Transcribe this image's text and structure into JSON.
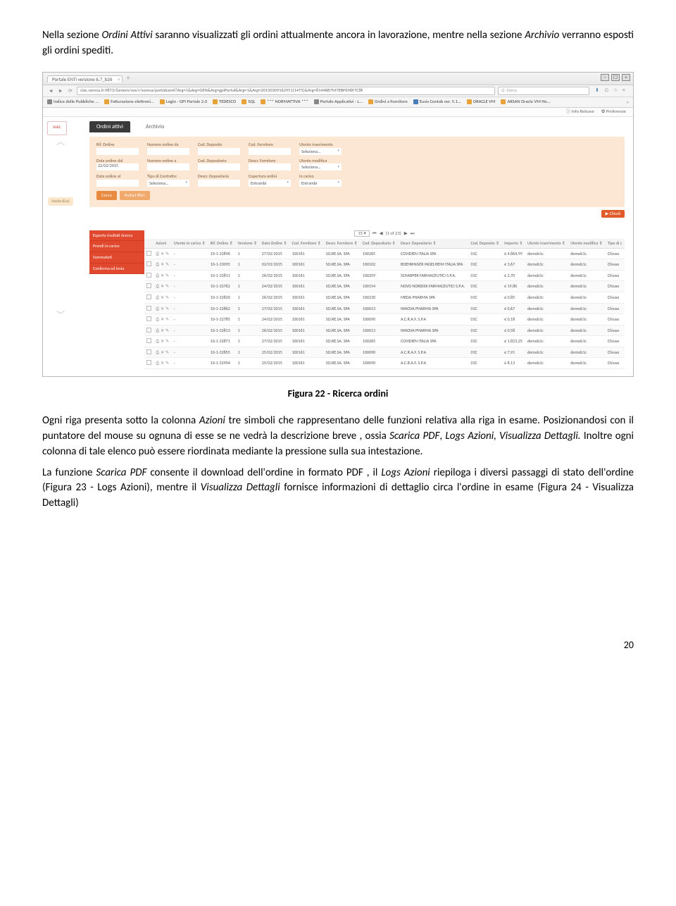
{
  "para1_a": "Nella sezione ",
  "para1_b": "Ordini Attivi",
  "para1_c": " saranno visualizzati gli ordini attualmente ancora in lavorazione, mentre nella sezione ",
  "para1_d": "Archivio",
  "para1_e": " verranno esposti gli ordini spediti.",
  "caption": "Figura 22 - Ricerca ordini",
  "para2_a": "Ogni riga presenta sotto la colonna ",
  "para2_b": "Azioni",
  "para2_c": "  tre simboli che rappresentano delle funzioni relativa alla riga in esame.  Posizionandosi con il puntatore del mouse su ognuna di esse se ne vedrà la descrizione breve , ossia ",
  "para2_d": "Scarica PDF",
  "para2_e": ", ",
  "para2_f": "Logs Azioni, Visualizza Dettagli.",
  "para2_g": " Inoltre ogni colonna di tale elenco può essere riordinata mediante la pressione sulla sua intestazione.",
  "para3_a": "La funzione ",
  "para3_b": "Scarica PDF",
  "para3_c": "  consente il download dell'ordine in formato PDF , il ",
  "para3_d": "Logs Azioni",
  "para3_e": "  riepiloga i diversi passaggi di stato dell'ordine (Figura 23 - Logs Azioni), mentre il ",
  "para3_f": "Visualizza Dettagli",
  "para3_g": " fornisce  informazioni di dettaglio circa l'ordine in esame (Figura 24 - Visualizza Dettagli)",
  "page_num": "20",
  "browser": {
    "tab_title": "Portale ENTI versione 6.7_b26",
    "url": "siac.soresa.it:9873/Genero/wa/r/soresa/portaleenti?Arg=1&Arg=GEN&Arg=gpiPortal&Arg=1&Arg=20150309162951[1475]&Arg=81446B7M7EBP696F7C8F",
    "search_placeholder": "Cerca",
    "bookmarks": [
      "Indice delle Pubbliche ...",
      "Fatturazione elettroni...",
      "Login - GPI Portale 2.0",
      "TEDESCO",
      "SQL",
      "*** NORMATTIVA ***",
      "Portale Applicativi - L...",
      "Ordini a Fornitore",
      "Eusis Contab ver. 5.1...",
      "ORACLE VM",
      "ARSAN Oracle VM Ho..."
    ],
    "info_release": "Info Release",
    "preferenze": "Preferenze"
  },
  "app": {
    "logo": "SIAC",
    "uscita": "Uscita (Esc)",
    "tab_active": "Ordini attivi",
    "tab_other": "Archivio",
    "filters": {
      "rif_ordine": "Rif. Ordine",
      "data_dal": "Data ordine dal",
      "data_dal_val": "22/02/2015",
      "data_al": "Data ordine al",
      "num_da": "Numero ordine da",
      "num_a": "Numero ordine a",
      "tipo_contratto": "Tipo di Contratto:",
      "seleziona": "Seleziona...",
      "cod_deposito": "Cod. Deposito",
      "cod_depositario": "Cod. Depositario",
      "descr_depositario": "Descr. Depositario",
      "cod_fornitore": "Cod. Fornitore",
      "descr_fornitore": "Descr. Fornitore",
      "copertura": "Copertura ordini",
      "entrambi": "Entrambi",
      "utente_ins": "Utente inserimento",
      "utente_mod": "Utente modifica",
      "in_carico": "In carico"
    },
    "btn_cerca": "Cerca",
    "btn_pulisci": "Pulisci filtri",
    "btn_chiudi": "▶ Chiudi",
    "redmenu": [
      "Esporta risultati ricerca",
      "Prendi in carico",
      "Sommatoti",
      "Conferma ed invia"
    ],
    "pager_size": "15",
    "pager_of": "(1 of 23)",
    "columns": [
      "",
      "Azioni",
      "Utente in carico ⇕",
      "Rif. Ordine ⇕",
      "Versione ⇕",
      "Data Ordine ⇕",
      "Cod. Fornitore ⇕",
      "Descr. Fornitore ⇕",
      "Cod. Depositario ⇕",
      "Descr. Depositario ⇕",
      "Cod. Deposito ⇕",
      "Importo ⇕",
      "Utente inserimento ⇕",
      "Utente modifica ⇕",
      "Tipo di c"
    ],
    "rows": [
      {
        "rif": "10-1-32896",
        "ver": "1",
        "data": "27/02/2015",
        "codf": "100161",
        "descrf": "SO.RE.SA. SPA",
        "codd": "100265",
        "descrd": "COVIDIEN ITALIA SPA",
        "dep": "01C",
        "imp": "€ 4.864,99",
        "uin": "demob1c",
        "umod": "demob1c",
        "tipo": "Chiuso"
      },
      {
        "rif": "10-1-33095",
        "ver": "1",
        "data": "02/03/2015",
        "codf": "100161",
        "descrf": "SO.RE.SA. SPA",
        "codd": "100102",
        "descrd": "BOEHRINGER INGELHEIM ITALIA SPA",
        "dep": "01C",
        "imp": "€ 3,67",
        "uin": "demob1c",
        "umod": "demob1c",
        "tipo": "Chiuso"
      },
      {
        "rif": "10-1-32811",
        "ver": "1",
        "data": "26/02/2015",
        "codf": "100161",
        "descrf": "SO.RE.SA. SPA",
        "codd": "100259",
        "descrd": "SCHARPER FARMACEUTICI S.P.A.",
        "dep": "01C",
        "imp": "€ 2,70",
        "uin": "demob1c",
        "umod": "demob1c",
        "tipo": "Chiuso"
      },
      {
        "rif": "10-1-32762",
        "ver": "1",
        "data": "24/02/2015",
        "codf": "100161",
        "descrf": "SO.RE.SA. SPA",
        "codd": "100154",
        "descrd": "NOVO NORDISK FARMACEUTICI S.P.A.",
        "dep": "01C",
        "imp": "€ 19,80",
        "uin": "demob1c",
        "umod": "demob1c",
        "tipo": "Chiuso"
      },
      {
        "rif": "10-1-32820",
        "ver": "1",
        "data": "26/02/2015",
        "codf": "100161",
        "descrf": "SO.RE.SA. SPA",
        "codd": "100230",
        "descrd": "MEDA PHARMA SPA",
        "dep": "01C",
        "imp": "€ 0,85",
        "uin": "demob1c",
        "umod": "demob1c",
        "tipo": "Chiuso"
      },
      {
        "rif": "10-1-32862",
        "ver": "1",
        "data": "27/02/2015",
        "codf": "100161",
        "descrf": "SO.RE.SA. SPA",
        "codd": "100013",
        "descrd": "INNOVA PHARMA SPA",
        "dep": "01C",
        "imp": "€ 0,67",
        "uin": "demob1c",
        "umod": "demob1c",
        "tipo": "Chiuso"
      },
      {
        "rif": "10-1-32785",
        "ver": "1",
        "data": "24/02/2015",
        "codf": "100161",
        "descrf": "SO.RE.SA. SPA",
        "codd": "100090",
        "descrd": "A.C.R.A.F. S.P.A",
        "dep": "01C",
        "imp": "€ 0,18",
        "uin": "demob1c",
        "umod": "demob1c",
        "tipo": "Chiuso"
      },
      {
        "rif": "10-1-32813",
        "ver": "1",
        "data": "26/02/2015",
        "codf": "100161",
        "descrf": "SO.RE.SA. SPA",
        "codd": "100013",
        "descrd": "INNOVA PHARMA SPA",
        "dep": "01C",
        "imp": "€ 0,58",
        "uin": "demob1c",
        "umod": "demob1c",
        "tipo": "Chiuso"
      },
      {
        "rif": "10-1-32871",
        "ver": "1",
        "data": "27/02/2015",
        "codf": "100161",
        "descrf": "SO.RE.SA. SPA",
        "codd": "100265",
        "descrd": "COVIDIEN ITALIA SPA",
        "dep": "01C",
        "imp": "€ 1.823,25",
        "uin": "demob1c",
        "umod": "demob1c",
        "tipo": "Chiuso"
      },
      {
        "rif": "10-1-32855",
        "ver": "1",
        "data": "25/02/2015",
        "codf": "100161",
        "descrf": "SO.RE.SA. SPA",
        "codd": "100090",
        "descrd": "A.C.R.A.F. S.P.A",
        "dep": "01C",
        "imp": "€ 7,91",
        "uin": "demob1c",
        "umod": "demob1c",
        "tipo": "Chiuso"
      },
      {
        "rif": "10-1-32904",
        "ver": "1",
        "data": "25/02/2015",
        "codf": "100161",
        "descrf": "SO.RE.SA. SPA",
        "codd": "100090",
        "descrd": "A.C.R.A.F. S.P.A",
        "dep": "01C",
        "imp": "€ 8,13",
        "uin": "demob1c",
        "umod": "demob1c",
        "tipo": "Chiuso"
      }
    ]
  }
}
